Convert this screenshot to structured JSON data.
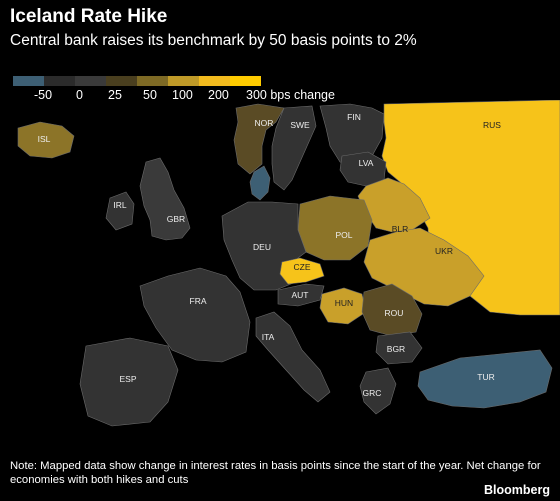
{
  "header": {
    "title": "Iceland Rate Hike",
    "subtitle": "Central bank raises its benchmark by 50 basis points to 2%"
  },
  "legend": {
    "colors": [
      "#3d5f74",
      "#2b2b2b",
      "#3a3a3a",
      "#4a3f1f",
      "#7e6a25",
      "#bf9a28",
      "#f2bb1e",
      "#ffcc00"
    ],
    "ticks": [
      {
        "label": "-50",
        "pos": "a"
      },
      {
        "label": "0",
        "pos": "b"
      },
      {
        "label": "25",
        "pos": "c"
      },
      {
        "label": "50",
        "pos": "d"
      },
      {
        "label": "100",
        "pos": "e"
      },
      {
        "label": "200",
        "pos": "f"
      },
      {
        "label": "300 bps change",
        "pos": "g"
      }
    ]
  },
  "map": {
    "countries": [
      {
        "code": "ISL",
        "label": "ISL",
        "change_bps": 100
      },
      {
        "code": "NOR",
        "label": "NOR",
        "change_bps": 50
      },
      {
        "code": "SWE",
        "label": "SWE",
        "change_bps": 0
      },
      {
        "code": "FIN",
        "label": "FIN",
        "change_bps": 0
      },
      {
        "code": "RUS",
        "label": "RUS",
        "change_bps": 300
      },
      {
        "code": "LVA",
        "label": "LVA",
        "change_bps": 0
      },
      {
        "code": "DNK",
        "label": "",
        "change_bps": -50
      },
      {
        "code": "IRL",
        "label": "IRL",
        "change_bps": 0
      },
      {
        "code": "GBR",
        "label": "GBR",
        "change_bps": 25
      },
      {
        "code": "BLR",
        "label": "BLR",
        "change_bps": 200
      },
      {
        "code": "POL",
        "label": "POL",
        "change_bps": 100
      },
      {
        "code": "DEU",
        "label": "DEU",
        "change_bps": 0
      },
      {
        "code": "UKR",
        "label": "UKR",
        "change_bps": 200
      },
      {
        "code": "CZE",
        "label": "CZE",
        "change_bps": 300
      },
      {
        "code": "FRA",
        "label": "FRA",
        "change_bps": 0
      },
      {
        "code": "AUT",
        "label": "AUT",
        "change_bps": 0
      },
      {
        "code": "HUN",
        "label": "HUN",
        "change_bps": 200
      },
      {
        "code": "ROU",
        "label": "ROU",
        "change_bps": 50
      },
      {
        "code": "ITA",
        "label": "ITA",
        "change_bps": 0
      },
      {
        "code": "BGR",
        "label": "BGR",
        "change_bps": 0
      },
      {
        "code": "ESP",
        "label": "ESP",
        "change_bps": 0
      },
      {
        "code": "TUR",
        "label": "TUR",
        "change_bps": -50
      },
      {
        "code": "GRC",
        "label": "GRC",
        "change_bps": 0
      }
    ]
  },
  "footer": {
    "note": "Note: Mapped data show change in interest rates in basis points since the start of the year. Net change for economies with both hikes and cuts",
    "brand": "Bloomberg"
  }
}
